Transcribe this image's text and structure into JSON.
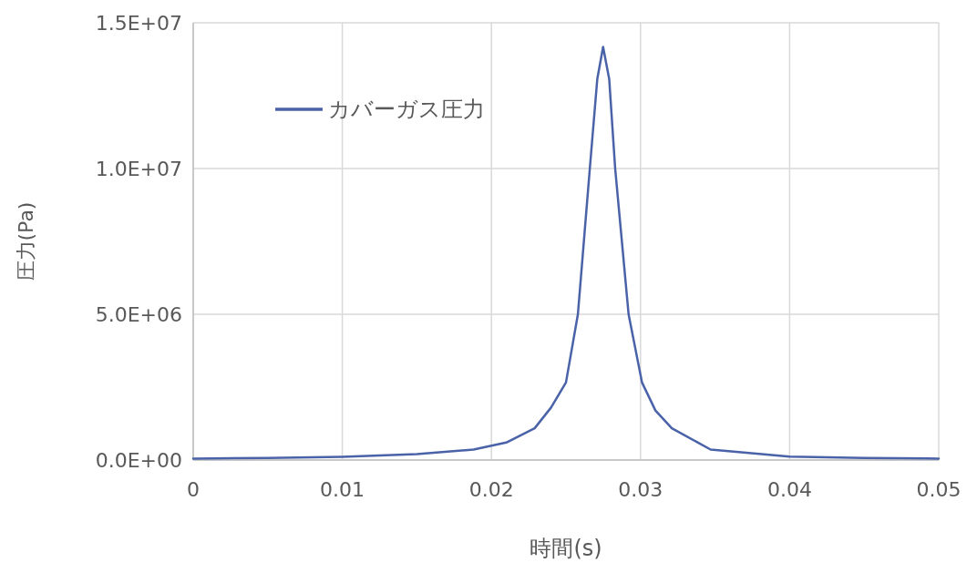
{
  "chart_data": {
    "type": "line",
    "xlabel": "時間(s)",
    "ylabel": "圧力(Pa)",
    "xlim": [
      0,
      0.05
    ],
    "xticks": [
      0,
      0.01,
      0.02,
      0.03,
      0.04,
      0.05
    ],
    "ylim": [
      0,
      15000000
    ],
    "yticks": [
      {
        "value": 0,
        "label": "0.0E+00"
      },
      {
        "value": 5000000,
        "label": "5.0E+06"
      },
      {
        "value": 10000000,
        "label": "1.0E+07"
      },
      {
        "value": 15000000,
        "label": "1.5E+07"
      }
    ],
    "grid": true,
    "legend": "top left",
    "line_style": "solid",
    "marker": "none",
    "series": [
      {
        "name": "カバーガス圧力",
        "color": "#4a62a8",
        "x": [
          0,
          0.005,
          0.01,
          0.015,
          0.0188,
          0.021,
          0.0229,
          0.024,
          0.025,
          0.0258,
          0.0266,
          0.0271,
          0.02749,
          0.0279,
          0.0283,
          0.0292,
          0.0301,
          0.031,
          0.0321,
          0.0347,
          0.04,
          0.045,
          0.05
        ],
        "values": [
          50000,
          70000,
          110000,
          200000,
          360000,
          600000,
          1090000,
          1800000,
          2660000,
          5000000,
          10000000,
          13070000,
          14170000,
          13070000,
          10000000,
          5000000,
          2660000,
          1700000,
          1090000,
          360000,
          120000,
          70000,
          50000
        ]
      }
    ]
  }
}
